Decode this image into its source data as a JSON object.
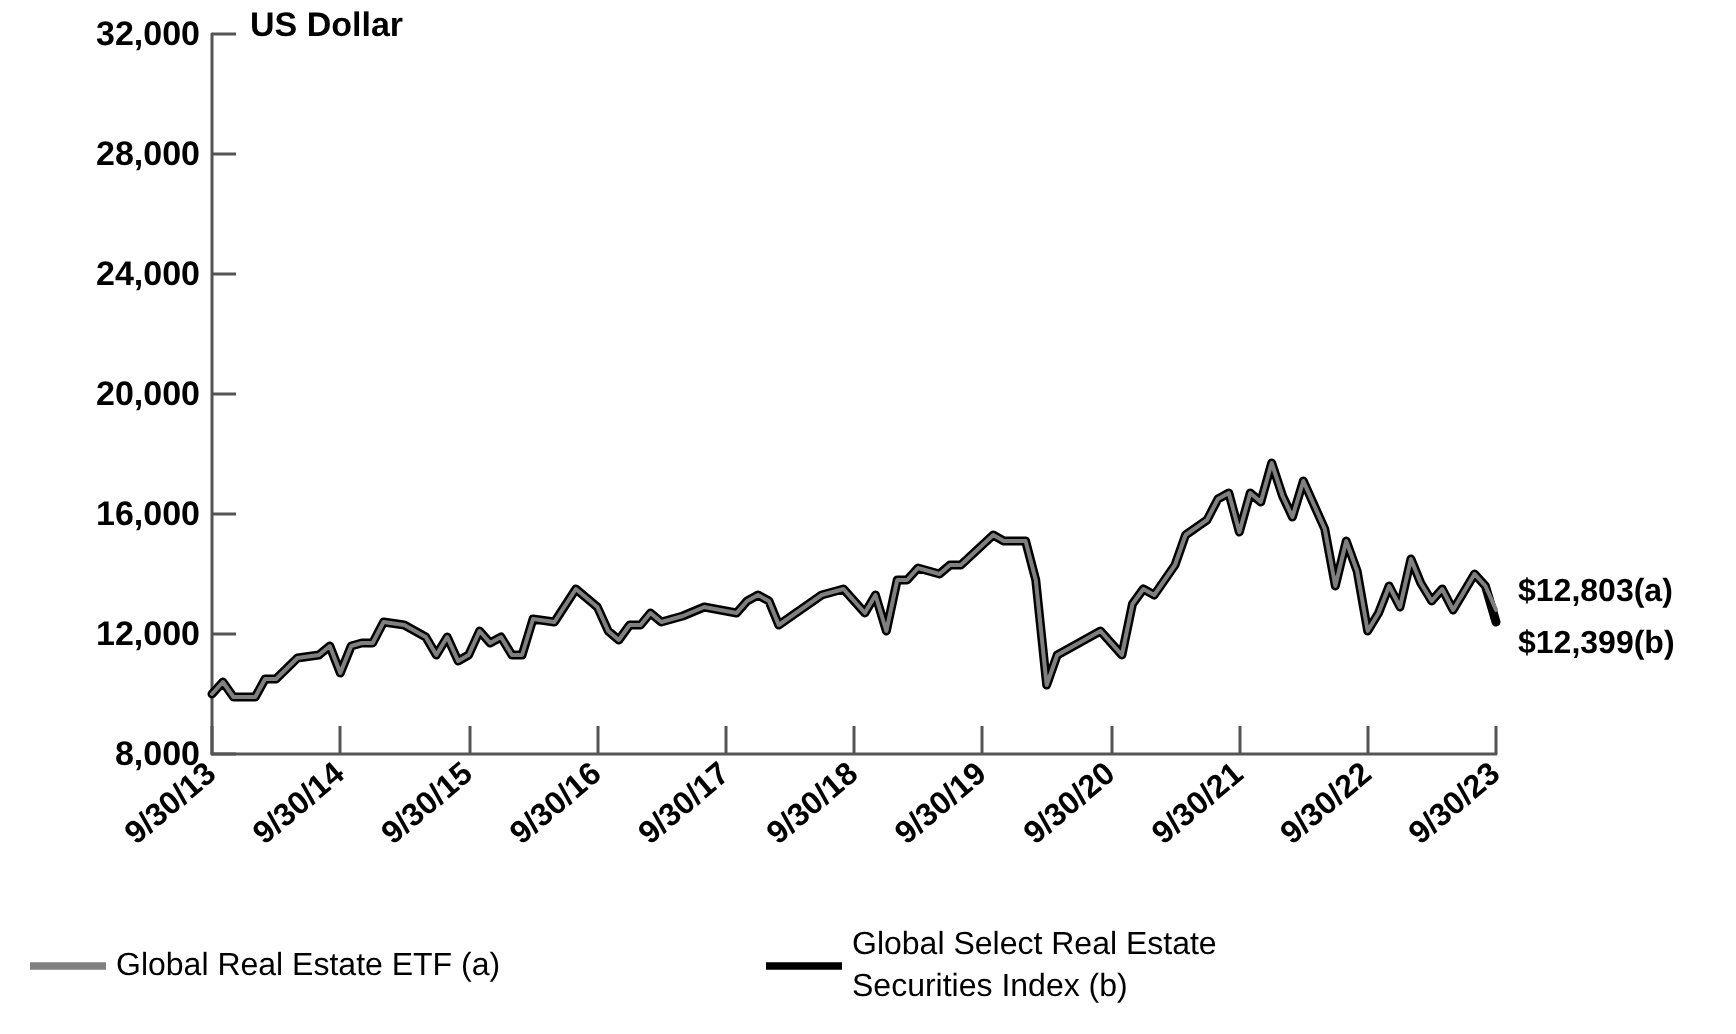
{
  "chart_data": {
    "type": "line",
    "ylabel": "US Dollar",
    "x": [
      "2013-09-30",
      "2013-10-31",
      "2013-11-30",
      "2014-01-31",
      "2014-02-28",
      "2014-03-31",
      "2014-05-31",
      "2014-07-31",
      "2014-08-31",
      "2014-09-30",
      "2014-10-31",
      "2014-11-30",
      "2014-12-31",
      "2015-01-31",
      "2015-03-31",
      "2015-05-31",
      "2015-06-30",
      "2015-07-31",
      "2015-08-31",
      "2015-09-30",
      "2015-10-31",
      "2015-11-30",
      "2015-12-31",
      "2016-01-31",
      "2016-02-29",
      "2016-03-31",
      "2016-05-31",
      "2016-07-31",
      "2016-09-30",
      "2016-10-31",
      "2016-11-30",
      "2016-12-31",
      "2017-01-31",
      "2017-02-28",
      "2017-03-31",
      "2017-05-31",
      "2017-07-31",
      "2017-10-31",
      "2017-11-30",
      "2017-12-31",
      "2018-01-31",
      "2018-02-28",
      "2018-04-30",
      "2018-06-30",
      "2018-08-31",
      "2018-10-31",
      "2018-11-30",
      "2018-12-31",
      "2019-01-31",
      "2019-02-28",
      "2019-03-31",
      "2019-05-31",
      "2019-06-30",
      "2019-07-31",
      "2019-10-31",
      "2019-11-30",
      "2020-01-31",
      "2020-02-29",
      "2020-03-31",
      "2020-04-30",
      "2020-05-31",
      "2020-08-31",
      "2020-10-31",
      "2020-11-30",
      "2020-12-31",
      "2021-01-31",
      "2021-03-31",
      "2021-04-30",
      "2021-06-30",
      "2021-07-31",
      "2021-08-31",
      "2021-09-30",
      "2021-10-31",
      "2021-11-30",
      "2021-12-31",
      "2022-01-31",
      "2022-02-28",
      "2022-03-31",
      "2022-05-31",
      "2022-06-30",
      "2022-07-31",
      "2022-08-31",
      "2022-09-30",
      "2022-10-31",
      "2022-11-30",
      "2022-12-31",
      "2023-01-31",
      "2023-02-28",
      "2023-03-31",
      "2023-04-30",
      "2023-05-31",
      "2023-07-31",
      "2023-08-31",
      "2023-09-30"
    ],
    "series": [
      {
        "name": "Global Select Real Estate Securities Index (b)",
        "color": "#000000",
        "values": [
          10000,
          10400,
          9900,
          9900,
          10500,
          10500,
          11200,
          11300,
          11600,
          10700,
          11600,
          11700,
          11700,
          12400,
          12300,
          11900,
          11300,
          11900,
          11100,
          11300,
          12100,
          11700,
          11900,
          11300,
          11300,
          12500,
          12400,
          13500,
          12900,
          12100,
          11800,
          12300,
          12300,
          12700,
          12400,
          12600,
          12900,
          12700,
          13100,
          13300,
          13100,
          12300,
          12800,
          13300,
          13500,
          12700,
          13300,
          12100,
          13800,
          13800,
          14200,
          14000,
          14300,
          14300,
          15300,
          15100,
          15100,
          13800,
          10300,
          11300,
          11500,
          12100,
          11300,
          13000,
          13500,
          13300,
          14300,
          15300,
          15800,
          16500,
          16700,
          15400,
          16700,
          16400,
          17700,
          16600,
          15900,
          17100,
          15500,
          13600,
          15100,
          14100,
          12100,
          12700,
          13600,
          12900,
          14500,
          13700,
          13100,
          13500,
          12800,
          14000,
          13600,
          12399
        ],
        "value_labels": [
          null,
          null,
          null,
          null,
          null,
          null,
          null,
          null,
          null,
          null,
          null,
          null,
          null,
          null,
          null,
          null,
          null,
          null,
          null,
          null,
          null,
          null,
          null,
          null,
          null,
          null,
          null,
          null,
          null,
          null,
          null,
          null,
          null,
          null,
          null,
          null,
          null,
          null,
          null,
          null,
          null,
          null,
          null,
          null,
          null,
          null,
          null,
          null,
          null,
          null,
          null,
          null,
          null,
          null,
          null,
          null,
          null,
          null,
          null,
          null,
          null,
          null,
          null,
          null,
          null,
          null,
          null,
          null,
          null,
          null,
          null,
          null,
          null,
          null,
          null,
          null,
          null,
          null,
          null,
          null,
          null,
          null,
          null,
          null,
          null,
          null,
          null,
          null,
          null,
          null,
          null,
          null,
          null,
          "$12,399(b)"
        ]
      },
      {
        "name": "Global Real Estate ETF (a)",
        "color": "#808080",
        "values": [
          10000,
          10400,
          9900,
          9900,
          10500,
          10500,
          11200,
          11300,
          11600,
          10700,
          11600,
          11700,
          11700,
          12400,
          12300,
          11900,
          11300,
          11900,
          11100,
          11300,
          12100,
          11700,
          11900,
          11300,
          11300,
          12500,
          12400,
          13500,
          12900,
          12100,
          11800,
          12300,
          12300,
          12700,
          12400,
          12600,
          12900,
          12700,
          13100,
          13300,
          13100,
          12300,
          12800,
          13300,
          13500,
          12700,
          13300,
          12100,
          13800,
          13800,
          14200,
          14000,
          14300,
          14300,
          15300,
          15100,
          15100,
          13800,
          10300,
          11300,
          11500,
          12100,
          11300,
          13000,
          13500,
          13300,
          14300,
          15300,
          15800,
          16500,
          16700,
          15400,
          16700,
          16400,
          17700,
          16600,
          15900,
          17100,
          15500,
          13600,
          15100,
          14100,
          12100,
          12700,
          13600,
          12900,
          14500,
          13700,
          13100,
          13500,
          12800,
          14000,
          13600,
          12803
        ],
        "value_labels": [
          null,
          null,
          null,
          null,
          null,
          null,
          null,
          null,
          null,
          null,
          null,
          null,
          null,
          null,
          null,
          null,
          null,
          null,
          null,
          null,
          null,
          null,
          null,
          null,
          null,
          null,
          null,
          null,
          null,
          null,
          null,
          null,
          null,
          null,
          null,
          null,
          null,
          null,
          null,
          null,
          null,
          null,
          null,
          null,
          null,
          null,
          null,
          null,
          null,
          null,
          null,
          null,
          null,
          null,
          null,
          null,
          null,
          null,
          null,
          null,
          null,
          null,
          null,
          null,
          null,
          null,
          null,
          null,
          null,
          null,
          null,
          null,
          null,
          null,
          null,
          null,
          null,
          null,
          null,
          null,
          null,
          null,
          null,
          null,
          null,
          null,
          null,
          null,
          null,
          null,
          null,
          null,
          null,
          "$12,803(a)"
        ]
      }
    ],
    "xlim": [
      "2013-09-30",
      "2023-09-30"
    ],
    "xticks": [
      {
        "value": "2013-09-30",
        "label": "9/30/13"
      },
      {
        "value": "2014-09-30",
        "label": "9/30/14"
      },
      {
        "value": "2015-09-30",
        "label": "9/30/15"
      },
      {
        "value": "2016-09-30",
        "label": "9/30/16"
      },
      {
        "value": "2017-09-30",
        "label": "9/30/17"
      },
      {
        "value": "2018-09-30",
        "label": "9/30/18"
      },
      {
        "value": "2019-09-30",
        "label": "9/30/19"
      },
      {
        "value": "2020-09-30",
        "label": "9/30/20"
      },
      {
        "value": "2021-09-30",
        "label": "9/30/21"
      },
      {
        "value": "2022-09-30",
        "label": "9/30/22"
      },
      {
        "value": "2023-09-30",
        "label": "9/30/23"
      }
    ],
    "ylim": [
      8000,
      32000
    ],
    "yticks": [
      {
        "value": 8000,
        "label": "8,000"
      },
      {
        "value": 12000,
        "label": "12,000"
      },
      {
        "value": 16000,
        "label": "16,000"
      },
      {
        "value": 20000,
        "label": "20,000"
      },
      {
        "value": 24000,
        "label": "24,000"
      },
      {
        "value": 28000,
        "label": "28,000"
      },
      {
        "value": 32000,
        "label": "32,000"
      }
    ],
    "grid": false,
    "legend": "bottom",
    "marker": "none",
    "line_style": "solid"
  }
}
